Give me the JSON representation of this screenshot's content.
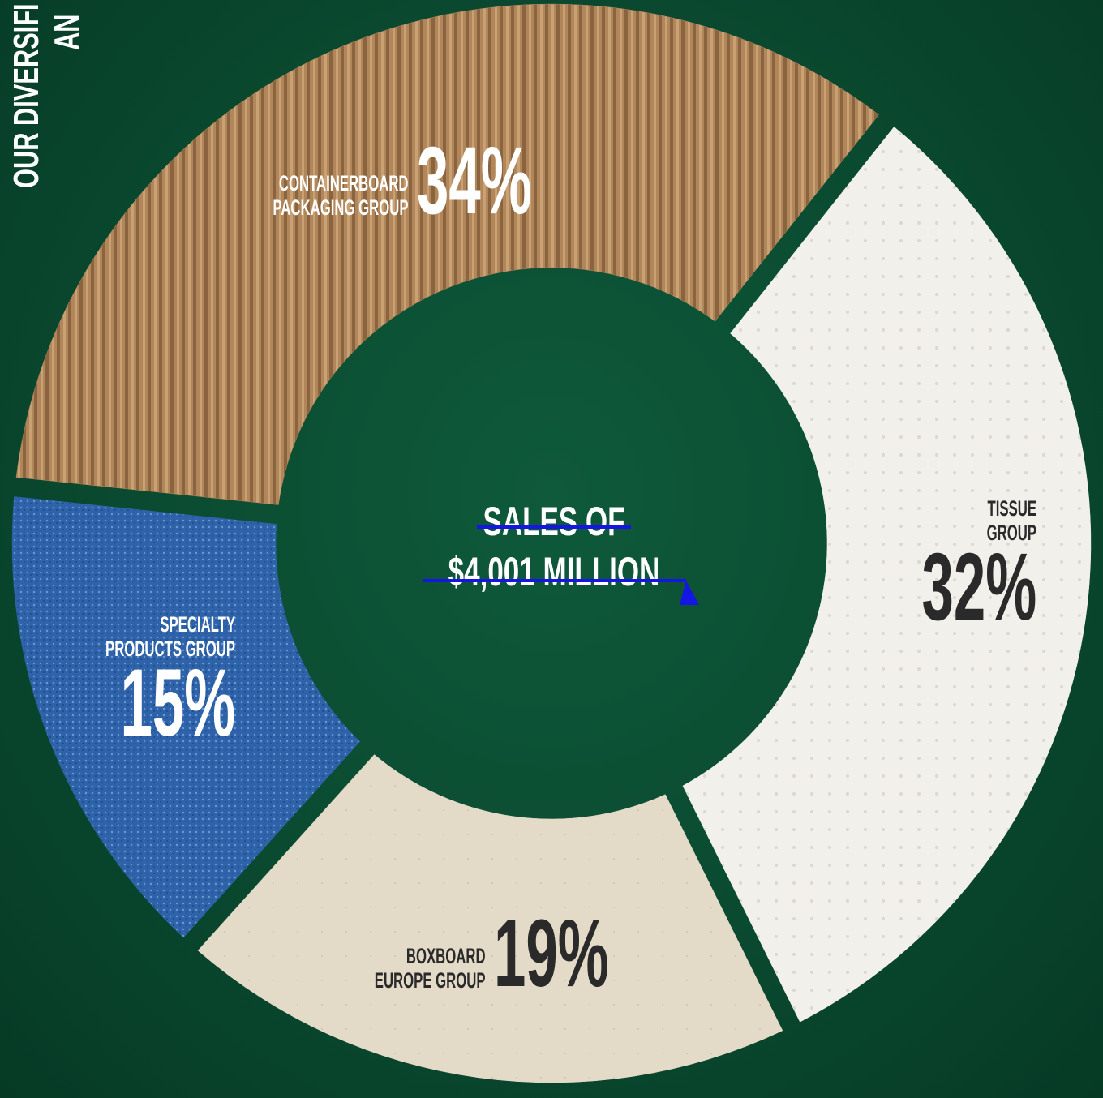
{
  "chart_data": {
    "type": "donut",
    "title": "OUR DIVERSIFI",
    "subtitle": "AN",
    "center_text": [
      "SALES OF",
      "$4,001 MILLION"
    ],
    "categories": [
      "CONTAINERBOARD\nPACKAGING GROUP",
      "TISSUE\nGROUP",
      "BOXBOARD\nEUROPE GROUP",
      "SPECIALTY\nPRODUCTS GROUP"
    ],
    "values": [
      34,
      32,
      19,
      15
    ],
    "value_labels": [
      "34%",
      "32%",
      "19%",
      "15%"
    ],
    "colors": [
      "#b0865a",
      "#f2f0eb",
      "#e4dac8",
      "#2e63a9"
    ]
  }
}
